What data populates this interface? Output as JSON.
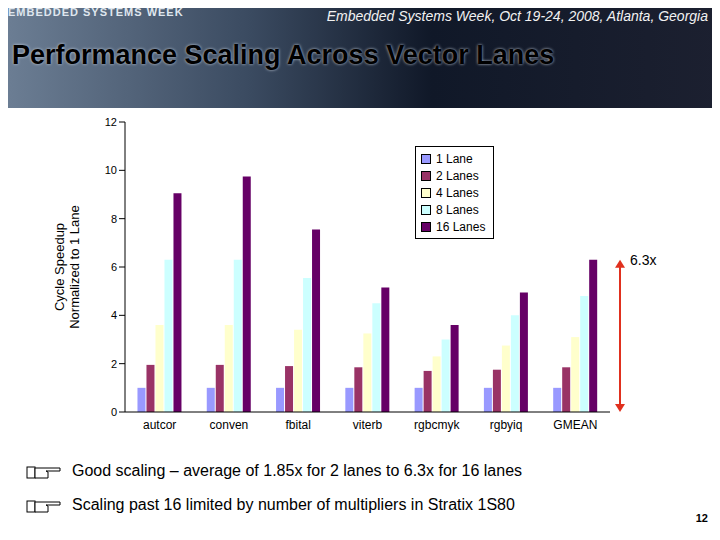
{
  "logo": "EMBEDDED SYSTEMS WEEK",
  "header": "Embedded Systems Week, Oct 19-24, 2008, Atlanta, Georgia",
  "title": "Performance Scaling Across Vector Lanes",
  "chart_data": {
    "type": "bar",
    "y_label": [
      "Cycle Speedup",
      "Normalized to 1 Lane"
    ],
    "categories": [
      "autcor",
      "conven",
      "fbital",
      "viterb",
      "rgbcmyk",
      "rgbyiq",
      "GMEAN"
    ],
    "series": [
      {
        "name": "1 Lane",
        "color": "#9999ff",
        "values": [
          1,
          1,
          1,
          1,
          1,
          1,
          1
        ]
      },
      {
        "name": "2 Lanes",
        "color": "#993366",
        "values": [
          1.95,
          1.95,
          1.9,
          1.85,
          1.7,
          1.75,
          1.85
        ]
      },
      {
        "name": "4 Lanes",
        "color": "#ffffcc",
        "values": [
          3.6,
          3.6,
          3.4,
          3.25,
          2.3,
          2.75,
          3.1
        ]
      },
      {
        "name": "8 Lanes",
        "color": "#ccffff",
        "values": [
          6.3,
          6.3,
          5.55,
          4.5,
          3.0,
          4.0,
          4.8
        ]
      },
      {
        "name": "16 Lanes",
        "color": "#660066",
        "values": [
          9.05,
          9.75,
          7.55,
          5.15,
          3.6,
          4.95,
          6.3
        ]
      }
    ],
    "ylim": [
      0,
      12
    ],
    "yticks": [
      0,
      2,
      4,
      6,
      8,
      10,
      12
    ],
    "grid": false,
    "legend": "upper right",
    "annotations": [
      {
        "text": "6.3x",
        "value": 6.3,
        "color": "#e0301e"
      }
    ]
  },
  "bullets": [
    "Good scaling – average of 1.85x for 2 lanes to 6.3x for 16 lanes",
    "Scaling past 16 limited by number of multipliers in Stratix 1S80"
  ],
  "page_number": "12"
}
